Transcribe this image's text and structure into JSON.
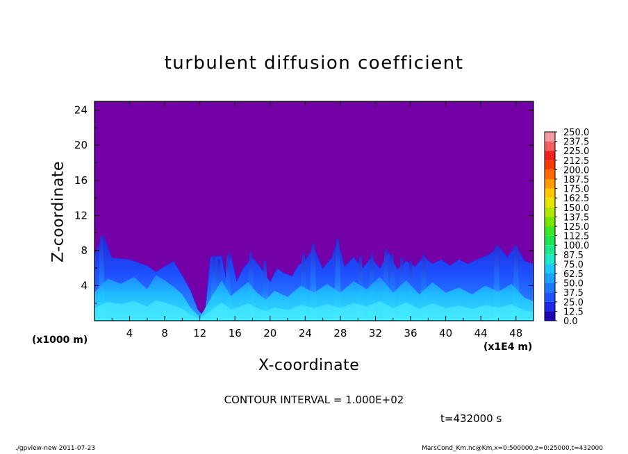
{
  "title": "turbulent diffusion coefficient",
  "footer_left": "./gpview-new   2011-07-23",
  "footer_right": "MarsCond_Km.nc@Km,x=0:500000,z=0:25000,t=432000",
  "colors": {
    "background_field": "#7400a8",
    "turbulent_layer_base": "#1e3cff",
    "turbulent_layer_high": "#33e6ff"
  },
  "chart_data": {
    "type": "heatmap",
    "title": "turbulent diffusion coefficient",
    "xlabel": "X-coordinate",
    "ylabel": "Z-coordinate",
    "x_unit_label": "(x1E4 m)",
    "y_unit_label": "(x1000 m)",
    "xlim": [
      0,
      50
    ],
    "ylim": [
      0,
      25
    ],
    "x_ticks": [
      "4",
      "8",
      "12",
      "16",
      "20",
      "24",
      "28",
      "32",
      "36",
      "40",
      "44",
      "48"
    ],
    "y_ticks": [
      "4",
      "8",
      "12",
      "16",
      "20",
      "24"
    ],
    "colorbar_levels": [
      "250.0",
      "237.5",
      "225.0",
      "212.5",
      "200.0",
      "187.5",
      "175.0",
      "162.5",
      "150.0",
      "137.5",
      "125.0",
      "112.5",
      "100.0",
      "87.5",
      "75.0",
      "62.5",
      "50.0",
      "37.5",
      "25.0",
      "12.5",
      "0.0"
    ],
    "colorbar_colors": [
      "#f49aa0",
      "#f46060",
      "#f42020",
      "#f43c00",
      "#ff6a00",
      "#ff9a00",
      "#ffc800",
      "#e6e600",
      "#b4e600",
      "#78e600",
      "#3ce628",
      "#1ee650",
      "#1ee68c",
      "#1ee6c8",
      "#1ec8ff",
      "#1ea0ff",
      "#1e78ff",
      "#1e50ff",
      "#1e28e6",
      "#1e00b4",
      "#7400a8"
    ],
    "contour_interval": "CONTOUR INTERVAL = 1.000E+02",
    "time_label": "t=432000 s",
    "boundary_layer_top": [
      {
        "x": 0,
        "z": 7.5
      },
      {
        "x": 1,
        "z": 9.7
      },
      {
        "x": 2,
        "z": 7.2
      },
      {
        "x": 4,
        "z": 7.0
      },
      {
        "x": 6,
        "z": 6.3
      },
      {
        "x": 7,
        "z": 5.6
      },
      {
        "x": 8,
        "z": 6.2
      },
      {
        "x": 9,
        "z": 6.8
      },
      {
        "x": 10,
        "z": 5.2
      },
      {
        "x": 11,
        "z": 3.4
      },
      {
        "x": 11.8,
        "z": 1.3
      },
      {
        "x": 12.5,
        "z": 0.5
      },
      {
        "x": 13.2,
        "z": 7.3
      },
      {
        "x": 14.5,
        "z": 7.4
      },
      {
        "x": 15,
        "z": 4.8
      },
      {
        "x": 15.5,
        "z": 7.7
      },
      {
        "x": 16.2,
        "z": 4.6
      },
      {
        "x": 17,
        "z": 6.1
      },
      {
        "x": 18,
        "z": 7.2
      },
      {
        "x": 19,
        "z": 6.0
      },
      {
        "x": 20,
        "z": 4.5
      },
      {
        "x": 20.8,
        "z": 6.0
      },
      {
        "x": 21.5,
        "z": 5.5
      },
      {
        "x": 22.5,
        "z": 5.1
      },
      {
        "x": 23.2,
        "z": 6.3
      },
      {
        "x": 24,
        "z": 7.0
      },
      {
        "x": 25,
        "z": 8.3
      },
      {
        "x": 26,
        "z": 6.0
      },
      {
        "x": 27,
        "z": 7.2
      },
      {
        "x": 27.7,
        "z": 9.2
      },
      {
        "x": 28.5,
        "z": 6.2
      },
      {
        "x": 29.5,
        "z": 7.3
      },
      {
        "x": 30.5,
        "z": 6.0
      },
      {
        "x": 31.5,
        "z": 7.2
      },
      {
        "x": 32.5,
        "z": 6.0
      },
      {
        "x": 33.5,
        "z": 7.8
      },
      {
        "x": 34.5,
        "z": 5.9
      },
      {
        "x": 35.5,
        "z": 6.8
      },
      {
        "x": 36.5,
        "z": 6.2
      },
      {
        "x": 37.5,
        "z": 7.3
      },
      {
        "x": 38.5,
        "z": 6.5
      },
      {
        "x": 39.5,
        "z": 7.0
      },
      {
        "x": 40.5,
        "z": 6.3
      },
      {
        "x": 41.5,
        "z": 7.0
      },
      {
        "x": 42.5,
        "z": 6.5
      },
      {
        "x": 44,
        "z": 7.2
      },
      {
        "x": 45,
        "z": 7.6
      },
      {
        "x": 46,
        "z": 8.5
      },
      {
        "x": 47,
        "z": 7.3
      },
      {
        "x": 48,
        "z": 8.6
      },
      {
        "x": 49,
        "z": 6.8
      },
      {
        "x": 50,
        "z": 6.5
      }
    ],
    "high_value_core_top": [
      {
        "x": 0,
        "z": 3.2
      },
      {
        "x": 1.5,
        "z": 4.8
      },
      {
        "x": 3,
        "z": 4.2
      },
      {
        "x": 4.5,
        "z": 5.0
      },
      {
        "x": 6,
        "z": 3.6
      },
      {
        "x": 7,
        "z": 5.2
      },
      {
        "x": 8,
        "z": 4.6
      },
      {
        "x": 9,
        "z": 3.9
      },
      {
        "x": 10,
        "z": 3.0
      },
      {
        "x": 11,
        "z": 1.4
      },
      {
        "x": 12,
        "z": 0.4
      },
      {
        "x": 13.5,
        "z": 3.0
      },
      {
        "x": 14.5,
        "z": 4.6
      },
      {
        "x": 15.5,
        "z": 2.8
      },
      {
        "x": 16.5,
        "z": 3.6
      },
      {
        "x": 17.5,
        "z": 4.4
      },
      {
        "x": 18.5,
        "z": 3.2
      },
      {
        "x": 19.5,
        "z": 2.4
      },
      {
        "x": 20.5,
        "z": 3.4
      },
      {
        "x": 22,
        "z": 2.7
      },
      {
        "x": 23.5,
        "z": 4.0
      },
      {
        "x": 25,
        "z": 3.2
      },
      {
        "x": 26.5,
        "z": 4.2
      },
      {
        "x": 28,
        "z": 3.2
      },
      {
        "x": 29.5,
        "z": 4.5
      },
      {
        "x": 31,
        "z": 3.6
      },
      {
        "x": 32.5,
        "z": 5.0
      },
      {
        "x": 34,
        "z": 3.2
      },
      {
        "x": 35.5,
        "z": 4.6
      },
      {
        "x": 37,
        "z": 3.0
      },
      {
        "x": 38.5,
        "z": 4.4
      },
      {
        "x": 40,
        "z": 3.2
      },
      {
        "x": 41.5,
        "z": 3.8
      },
      {
        "x": 43,
        "z": 3.0
      },
      {
        "x": 44.5,
        "z": 4.0
      },
      {
        "x": 46,
        "z": 3.3
      },
      {
        "x": 47.5,
        "z": 4.2
      },
      {
        "x": 49,
        "z": 2.6
      },
      {
        "x": 50,
        "z": 2.2
      }
    ],
    "plumes": [
      {
        "x": 0.8,
        "top": 9.7
      },
      {
        "x": 13.6,
        "top": 7.4
      },
      {
        "x": 14.2,
        "top": 7.0
      },
      {
        "x": 15.2,
        "top": 7.6
      },
      {
        "x": 17.8,
        "top": 7.8
      },
      {
        "x": 19.4,
        "top": 6.8
      },
      {
        "x": 23.8,
        "top": 7.6
      },
      {
        "x": 24.9,
        "top": 8.8
      },
      {
        "x": 27.7,
        "top": 9.3
      },
      {
        "x": 30.3,
        "top": 7.4
      },
      {
        "x": 31.6,
        "top": 7.6
      },
      {
        "x": 33.2,
        "top": 8.2
      },
      {
        "x": 33.9,
        "top": 7.6
      },
      {
        "x": 35.0,
        "top": 7.2
      },
      {
        "x": 36.0,
        "top": 6.8
      },
      {
        "x": 37.5,
        "top": 7.5
      },
      {
        "x": 45.8,
        "top": 8.6
      },
      {
        "x": 48.0,
        "top": 8.6
      }
    ]
  }
}
